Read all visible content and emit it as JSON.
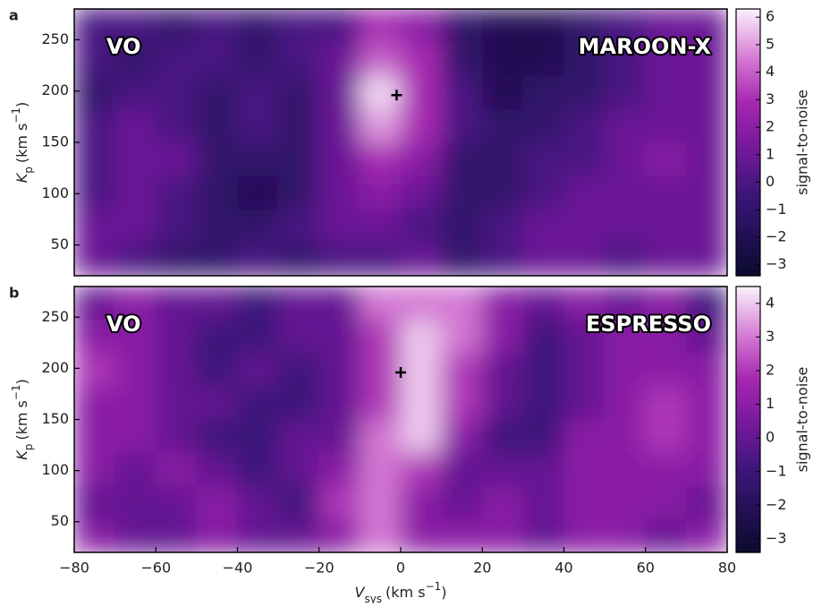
{
  "chart_data": [
    {
      "type": "heatmap",
      "panel": "a",
      "annotations": {
        "left": "VO",
        "right": "MAROON-X"
      },
      "ylabel": {
        "main": "K",
        "sub": "p",
        "unit": "(km s",
        "sup": "−1",
        "close": ")"
      },
      "colorbar_label": "signal-to-noise",
      "xlim": [
        -80,
        80
      ],
      "ylim": [
        20,
        280
      ],
      "x": [
        -75,
        -65,
        -55,
        -45,
        -35,
        -25,
        -15,
        -5,
        5,
        15,
        25,
        35,
        45,
        55,
        65,
        75
      ],
      "y": [
        36,
        69,
        101,
        134,
        166,
        199,
        231,
        264
      ],
      "z": [
        [
          1,
          0,
          -1,
          -1,
          0,
          -1,
          0,
          0,
          1,
          -1,
          0,
          1,
          1,
          0,
          1,
          1
        ],
        [
          1,
          1,
          0,
          -1,
          -1,
          0,
          1,
          1,
          0,
          -1,
          0,
          1,
          1,
          1,
          1,
          1
        ],
        [
          0,
          1,
          0,
          -1,
          -2,
          -1,
          1,
          2,
          1,
          -1,
          -1,
          0,
          1,
          1,
          1,
          1
        ],
        [
          0,
          1,
          1,
          -1,
          -1,
          -1,
          1,
          3,
          2,
          -1,
          -1,
          0,
          0,
          1,
          2,
          1
        ],
        [
          0,
          1,
          0,
          -1,
          0,
          -1,
          1,
          5,
          3,
          0,
          -1,
          -1,
          0,
          1,
          1,
          1
        ],
        [
          -1,
          0,
          0,
          -1,
          0,
          -1,
          1,
          6,
          3,
          0,
          -2,
          -1,
          -1,
          0,
          1,
          1
        ],
        [
          0,
          -1,
          0,
          0,
          -1,
          0,
          1,
          4,
          3,
          -1,
          -2,
          -2,
          -1,
          0,
          1,
          1
        ],
        [
          0,
          0,
          -1,
          0,
          -1,
          0,
          0,
          3,
          2,
          -1,
          -2,
          -2,
          -1,
          0,
          1,
          1
        ]
      ],
      "zlim": [
        -3.4,
        6.3
      ],
      "zticks": [
        {
          "value": -3,
          "label": "−3"
        },
        {
          "value": -2,
          "label": "−2"
        },
        {
          "value": -1,
          "label": "−1"
        },
        0,
        1,
        2,
        3,
        4,
        5,
        6
      ],
      "yticks": [
        50,
        100,
        150,
        200,
        250
      ],
      "marker": {
        "x": -1,
        "y": 196
      }
    },
    {
      "type": "heatmap",
      "panel": "b",
      "annotations": {
        "left": "VO",
        "right": "ESPRESSO"
      },
      "ylabel": {
        "main": "K",
        "sub": "p",
        "unit": "(km s",
        "sup": "−1",
        "close": ")"
      },
      "xlabel": {
        "main": "V",
        "sub": "sys",
        "unit": "(km s",
        "sup": "−1",
        "close": ")"
      },
      "colorbar_label": "signal-to-noise",
      "xlim": [
        -80,
        80
      ],
      "ylim": [
        20,
        280
      ],
      "x": [
        -75,
        -65,
        -55,
        -45,
        -35,
        -25,
        -15,
        -5,
        5,
        15,
        25,
        35,
        45,
        55,
        65,
        75
      ],
      "y": [
        36,
        69,
        101,
        134,
        166,
        199,
        231,
        264
      ],
      "z": [
        [
          1,
          0,
          0,
          1,
          0,
          0,
          1,
          3,
          1,
          1,
          1,
          0,
          1,
          1,
          0,
          1
        ],
        [
          0,
          0,
          0,
          1,
          0,
          -1,
          2,
          3,
          1,
          0,
          1,
          0,
          1,
          1,
          1,
          0
        ],
        [
          1,
          0,
          1,
          0,
          -1,
          0,
          1,
          3,
          2,
          0,
          0,
          0,
          1,
          1,
          1,
          1
        ],
        [
          1,
          1,
          0,
          -1,
          -1,
          0,
          0,
          3,
          4,
          1,
          -1,
          -1,
          1,
          1,
          2,
          1
        ],
        [
          1,
          1,
          0,
          0,
          -1,
          -1,
          0,
          2,
          4,
          2,
          0,
          -1,
          0,
          1,
          2,
          1
        ],
        [
          2,
          1,
          0,
          -1,
          0,
          -1,
          0,
          2,
          4,
          2,
          0,
          -1,
          0,
          1,
          1,
          1
        ],
        [
          1,
          1,
          0,
          -1,
          -1,
          0,
          0,
          2,
          4,
          3,
          1,
          -1,
          0,
          1,
          1,
          0
        ],
        [
          0,
          1,
          0,
          0,
          -1,
          0,
          0,
          3,
          3,
          3,
          1,
          0,
          1,
          0,
          1,
          -1
        ]
      ],
      "zlim": [
        -3.4,
        4.5
      ],
      "zticks": [
        {
          "value": -3,
          "label": "−3"
        },
        {
          "value": -2,
          "label": "−2"
        },
        {
          "value": -1,
          "label": "−1"
        },
        0,
        1,
        2,
        3,
        4
      ],
      "yticks": [
        50,
        100,
        150,
        200,
        250
      ],
      "xticks": [
        {
          "value": -80,
          "label": "−80"
        },
        {
          "value": -60,
          "label": "−60"
        },
        {
          "value": -40,
          "label": "−40"
        },
        {
          "value": -20,
          "label": "−20"
        },
        0,
        20,
        40,
        60,
        80
      ],
      "marker": {
        "x": 0,
        "y": 196
      }
    }
  ]
}
